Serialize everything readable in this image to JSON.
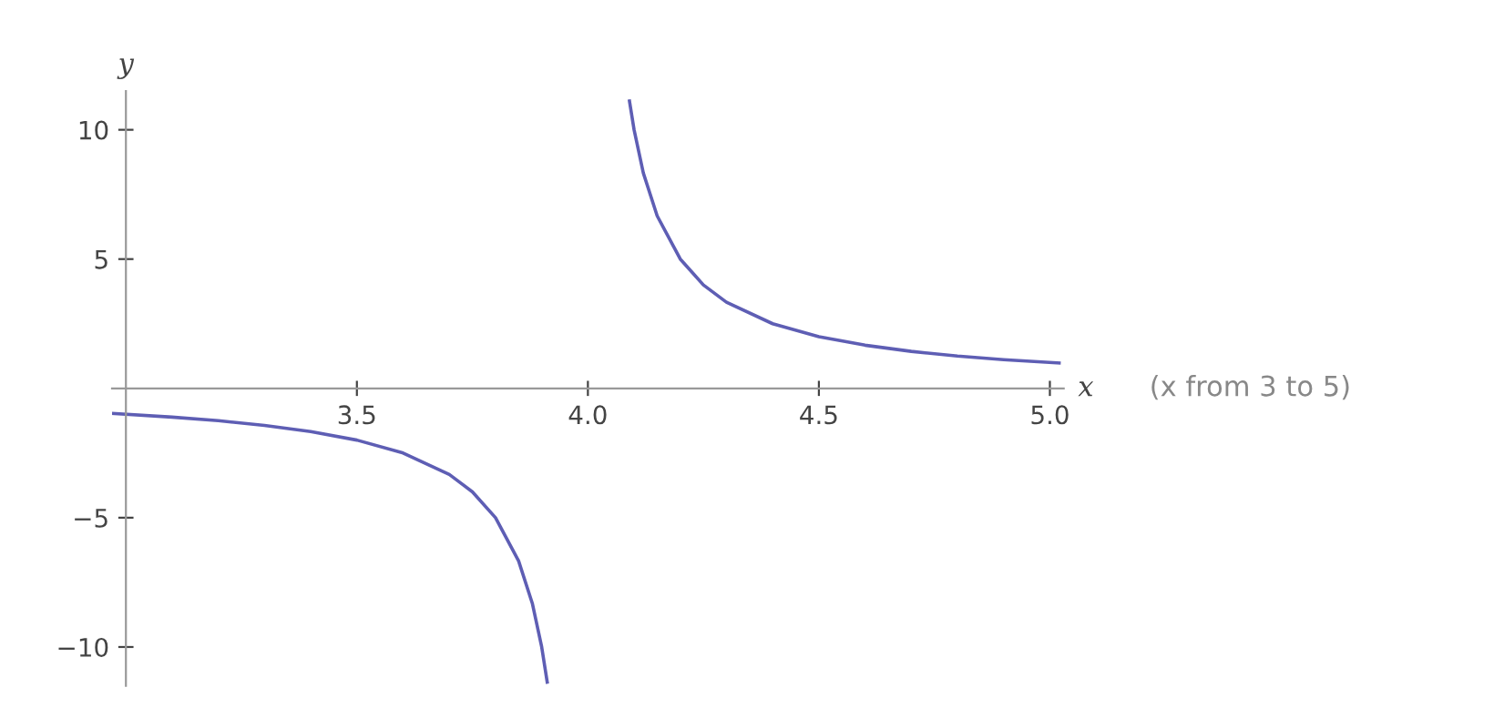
{
  "chart_data": {
    "type": "line",
    "xlabel": "x",
    "ylabel": "y",
    "x": [
      2.97,
      3.1,
      3.2,
      3.3,
      3.4,
      3.5,
      3.6,
      3.7,
      3.75,
      3.8,
      3.85,
      3.88,
      3.9,
      3.912,
      4.0,
      4.09,
      4.1,
      4.12,
      4.15,
      4.2,
      4.25,
      4.3,
      4.4,
      4.5,
      4.6,
      4.7,
      4.8,
      4.9,
      5.02
    ],
    "series": [
      {
        "color": "#5e5eb4",
        "values": [
          -0.97,
          -1.11,
          -1.25,
          -1.43,
          -1.67,
          -2.0,
          -2.5,
          -3.33,
          -4.0,
          -5.0,
          -6.67,
          -8.33,
          -10.0,
          -11.36,
          null,
          11.11,
          10.0,
          8.33,
          6.67,
          5.0,
          4.0,
          3.33,
          2.5,
          2.0,
          1.67,
          1.43,
          1.25,
          1.11,
          0.98
        ]
      }
    ],
    "xlim": [
      2.97,
      5.03
    ],
    "ylim": [
      -11.5,
      11.5
    ],
    "xticks": [
      3.5,
      {
        "value": 4.0,
        "label": "4.0"
      },
      4.5,
      {
        "value": 5.0,
        "label": "5.0"
      }
    ],
    "yticks": [
      {
        "value": -10,
        "label": "−10"
      },
      {
        "value": -5,
        "label": "−5"
      },
      5,
      10
    ],
    "annotations": [
      "(x from 3 to 5)"
    ],
    "grid": false,
    "legend": false,
    "marker": "none",
    "line_style": "solid"
  }
}
